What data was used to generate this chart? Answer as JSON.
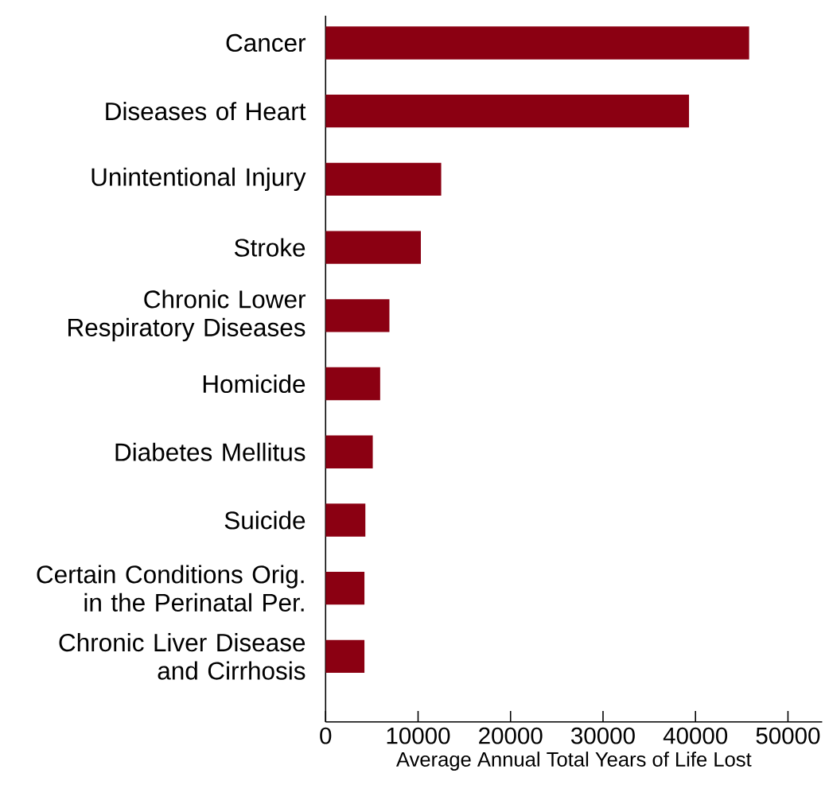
{
  "chart_data": {
    "type": "bar",
    "orientation": "horizontal",
    "xlabel": "Average Annual Total Years of Life Lost",
    "categories": [
      "Cancer",
      "Diseases of Heart",
      "Unintentional Injury",
      "Stroke",
      "Chronic Lower Respiratory Diseases",
      "Homicide",
      "Diabetes Mellitus",
      "Suicide",
      "Certain Conditions Orig. in the Perinatal Per.",
      "Chronic Liver Disease and Cirrhosis"
    ],
    "values": [
      45800,
      39300,
      12500,
      10300,
      6900,
      5900,
      5100,
      4300,
      4200,
      4200
    ],
    "color": "#8b0012",
    "xlim": [
      0,
      53700
    ],
    "xticks": [
      0,
      10000,
      20000,
      30000,
      40000,
      50000
    ]
  }
}
